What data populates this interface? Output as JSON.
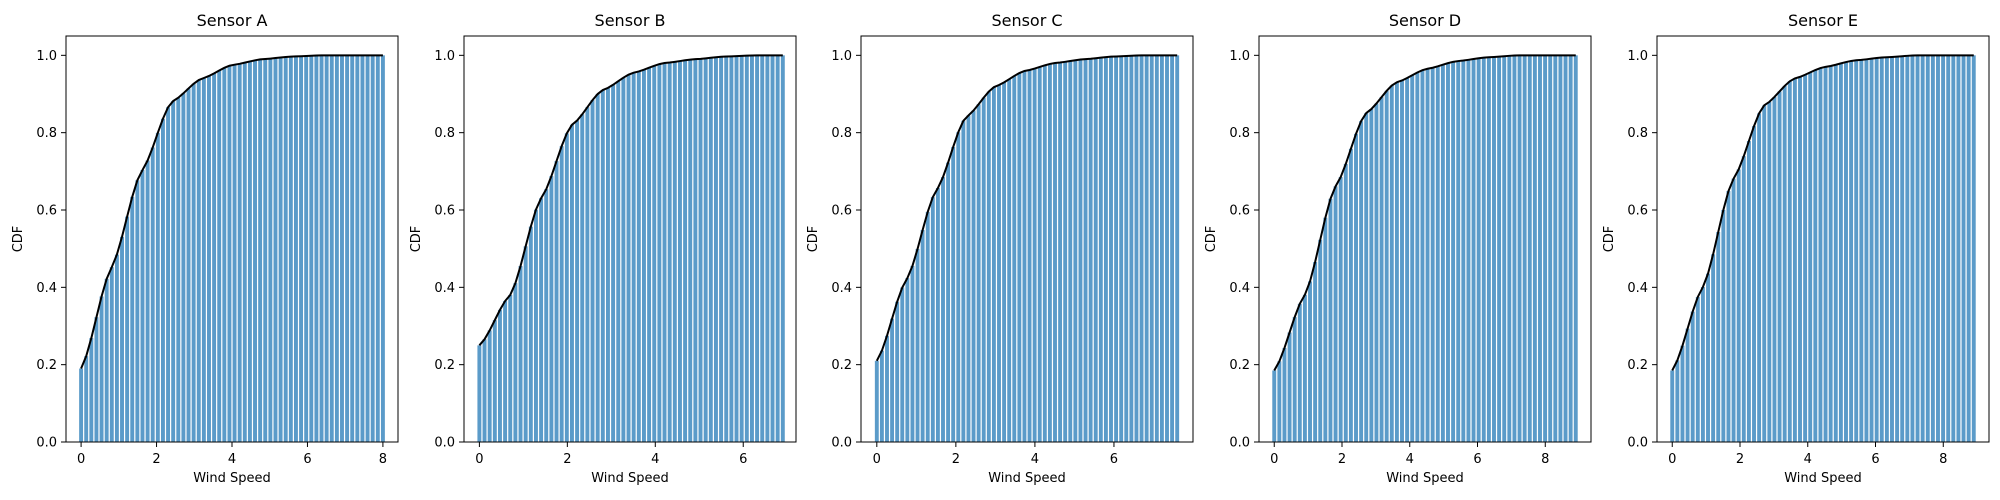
{
  "colors": {
    "bar": "#5b9bc9",
    "line": "#000000",
    "axis": "#000000"
  },
  "chart_data": [
    {
      "type": "bar",
      "title": "Sensor A",
      "xlabel": "Wind Speed",
      "ylabel": "CDF",
      "xlim": [
        -0.4,
        8.4
      ],
      "ylim": [
        0,
        1.05
      ],
      "xticks": [
        0,
        2,
        4,
        6,
        8
      ],
      "yticks": [
        0.0,
        0.2,
        0.4,
        0.6,
        0.8,
        1.0
      ],
      "grid": false,
      "series": [
        {
          "x": [
            0.0,
            0.8,
            1.6,
            2.4,
            3.2,
            4.0,
            4.8,
            5.6,
            6.4,
            7.2,
            8.0
          ],
          "values": [
            0.19,
            0.45,
            0.7,
            0.88,
            0.94,
            0.975,
            0.99,
            0.997,
            1.0,
            1.0,
            1.0
          ]
        }
      ]
    },
    {
      "type": "bar",
      "title": "Sensor B",
      "xlabel": "Wind Speed",
      "ylabel": "CDF",
      "xlim": [
        -0.35,
        7.2
      ],
      "ylim": [
        0,
        1.05
      ],
      "xticks": [
        0,
        2,
        4,
        6
      ],
      "yticks": [
        0.0,
        0.2,
        0.4,
        0.6,
        0.8,
        1.0
      ],
      "grid": false,
      "series": [
        {
          "x": [
            0.0,
            0.7,
            1.4,
            2.1,
            2.8,
            3.5,
            4.2,
            4.9,
            5.6,
            6.3,
            6.9
          ],
          "values": [
            0.25,
            0.38,
            0.63,
            0.82,
            0.91,
            0.955,
            0.98,
            0.99,
            0.997,
            1.0,
            1.0
          ]
        }
      ]
    },
    {
      "type": "bar",
      "title": "Sensor C",
      "xlabel": "Wind Speed",
      "ylabel": "CDF",
      "xlim": [
        -0.4,
        8.0
      ],
      "ylim": [
        0,
        1.05
      ],
      "xticks": [
        0,
        2,
        4,
        6
      ],
      "yticks": [
        0.0,
        0.2,
        0.4,
        0.6,
        0.8,
        1.0
      ],
      "grid": false,
      "series": [
        {
          "x": [
            0.0,
            0.75,
            1.5,
            2.25,
            3.0,
            3.75,
            4.5,
            5.25,
            6.0,
            6.75,
            7.6
          ],
          "values": [
            0.21,
            0.42,
            0.65,
            0.84,
            0.92,
            0.96,
            0.98,
            0.99,
            0.997,
            1.0,
            1.0
          ]
        }
      ]
    },
    {
      "type": "bar",
      "title": "Sensor D",
      "xlabel": "Wind Speed",
      "ylabel": "CDF",
      "xlim": [
        -0.45,
        9.35
      ],
      "ylim": [
        0,
        1.05
      ],
      "xticks": [
        0,
        2,
        4,
        6,
        8
      ],
      "yticks": [
        0.0,
        0.2,
        0.4,
        0.6,
        0.8,
        1.0
      ],
      "grid": false,
      "series": [
        {
          "x": [
            0.0,
            0.9,
            1.8,
            2.7,
            3.6,
            4.5,
            5.4,
            6.3,
            7.2,
            8.1,
            8.9
          ],
          "values": [
            0.185,
            0.38,
            0.66,
            0.85,
            0.93,
            0.965,
            0.985,
            0.995,
            1.0,
            1.0,
            1.0
          ]
        }
      ]
    },
    {
      "type": "bar",
      "title": "Sensor E",
      "xlabel": "Wind Speed",
      "ylabel": "CDF",
      "xlim": [
        -0.45,
        9.35
      ],
      "ylim": [
        0,
        1.05
      ],
      "xticks": [
        0,
        2,
        4,
        6,
        8
      ],
      "yticks": [
        0.0,
        0.2,
        0.4,
        0.6,
        0.8,
        1.0
      ],
      "grid": false,
      "series": [
        {
          "x": [
            0.0,
            0.9,
            1.8,
            2.7,
            3.6,
            4.5,
            5.4,
            6.3,
            7.2,
            8.1,
            8.9
          ],
          "values": [
            0.185,
            0.4,
            0.68,
            0.87,
            0.94,
            0.97,
            0.987,
            0.995,
            1.0,
            1.0,
            1.0
          ]
        }
      ]
    }
  ]
}
